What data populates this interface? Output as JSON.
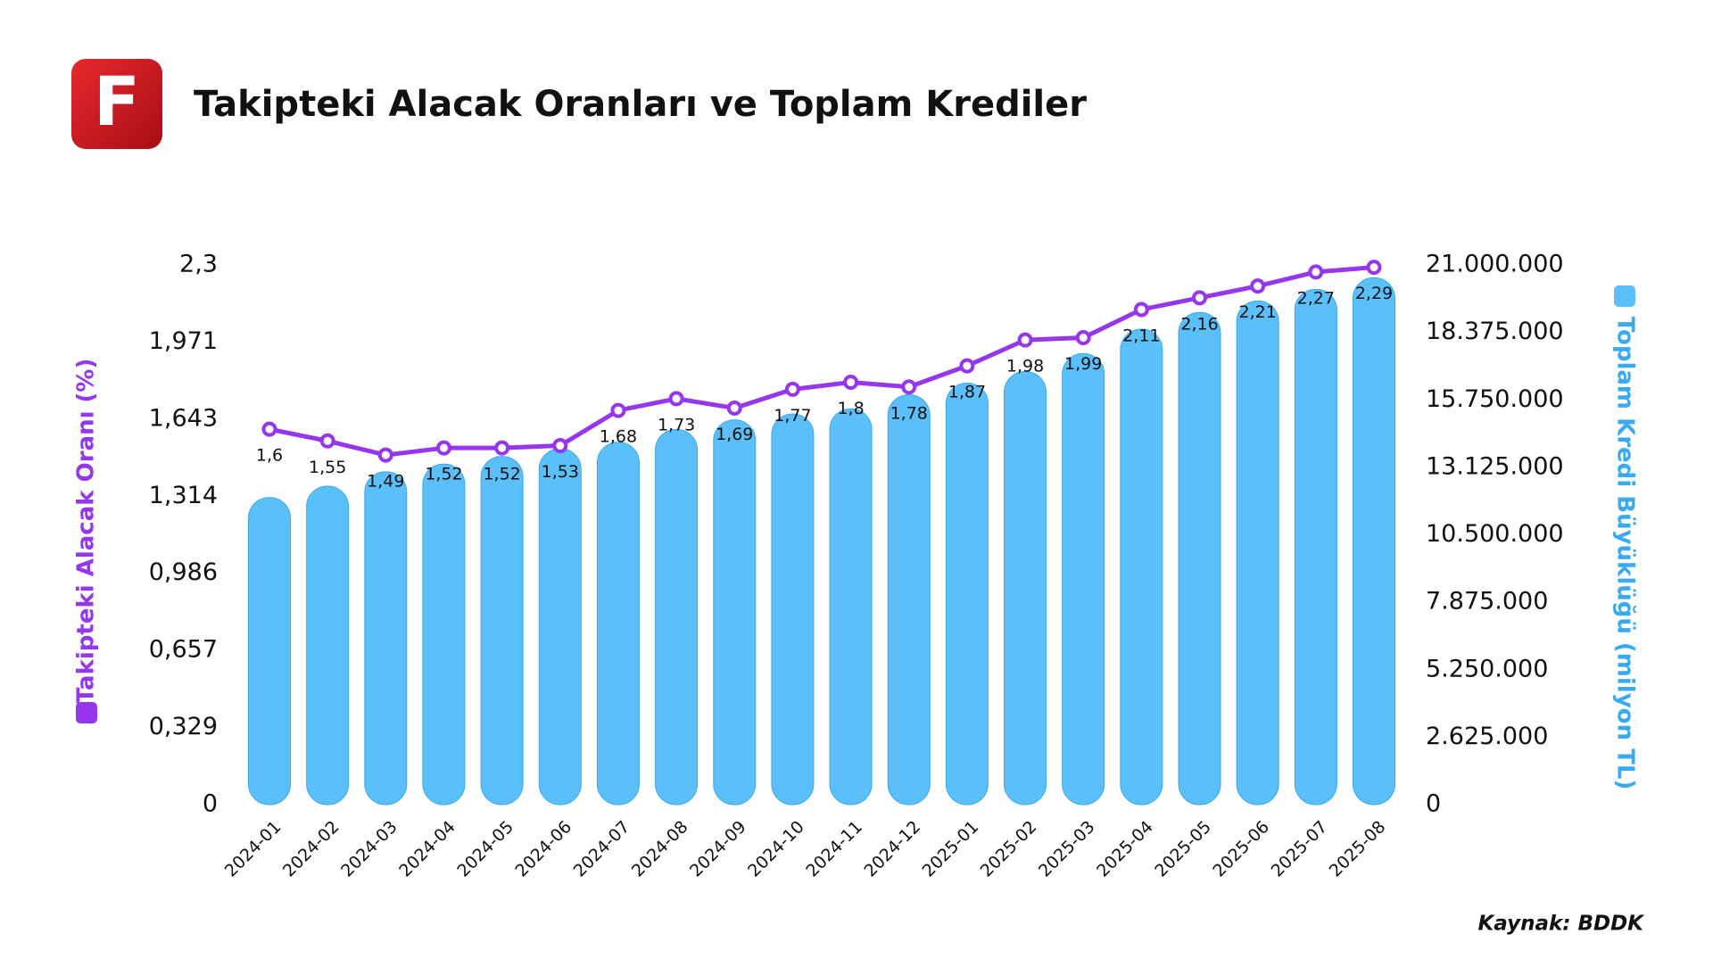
{
  "logo": "F",
  "chart_data": {
    "type": "bar-line",
    "title": "Takipteki Alacak Oranları ve Toplam Krediler",
    "source": "Kaynak: BDDK",
    "categories": [
      "2024-01",
      "2024-02",
      "2024-03",
      "2024-04",
      "2024-05",
      "2024-06",
      "2024-07",
      "2024-08",
      "2024-09",
      "2024-10",
      "2024-11",
      "2024-12",
      "2025-01",
      "2025-02",
      "2025-03",
      "2025-04",
      "2025-05",
      "2025-06",
      "2025-07",
      "2025-08"
    ],
    "series": [
      {
        "name": "Toplam Kredi Büyüklüğü (milyon TL)",
        "type": "bar",
        "axis": "y2",
        "color": "#5bbff9",
        "values": [
          11950000,
          12390000,
          12950000,
          13250000,
          13550000,
          13850000,
          14100000,
          14600000,
          14970000,
          15200000,
          15400000,
          15950000,
          16400000,
          16850000,
          17550000,
          18500000,
          19150000,
          19600000,
          20050000,
          20500000
        ]
      },
      {
        "name": "Takipteki Alacak Oranı (%)",
        "type": "line",
        "axis": "y",
        "color": "#9437ef",
        "values": [
          1.6,
          1.55,
          1.49,
          1.52,
          1.52,
          1.53,
          1.68,
          1.73,
          1.69,
          1.77,
          1.8,
          1.78,
          1.87,
          1.98,
          1.99,
          2.11,
          2.16,
          2.21,
          2.27,
          2.29
        ],
        "value_labels": [
          "1,6",
          "1,55",
          "1,49",
          "1,52",
          "1,52",
          "1,53",
          "1,68",
          "1,73",
          "1,69",
          "1,77",
          "1,8",
          "1,78",
          "1,87",
          "1,98",
          "1,99",
          "2,11",
          "2,16",
          "2,21",
          "2,27",
          "2,29"
        ]
      }
    ],
    "ylim": [
      0,
      2.3
    ],
    "yticks": [
      0,
      {
        "value": 0.329,
        "label": "0,329"
      },
      {
        "value": 0.657,
        "label": "0,657"
      },
      {
        "value": 0.986,
        "label": "0,986"
      },
      {
        "value": 1.314,
        "label": "1,314"
      },
      {
        "value": 1.643,
        "label": "1,643"
      },
      {
        "value": 1.971,
        "label": "1,971"
      },
      {
        "value": 2.3,
        "label": "2,3"
      }
    ],
    "y2lim": [
      0,
      21000000
    ],
    "y2ticks": [
      0,
      {
        "value": 2625000,
        "label": "2.625.000"
      },
      {
        "value": 5250000,
        "label": "5.250.000"
      },
      {
        "value": 7875000,
        "label": "7.875.000"
      },
      {
        "value": 10500000,
        "label": "10.500.000"
      },
      {
        "value": 13125000,
        "label": "13.125.000"
      },
      {
        "value": 15750000,
        "label": "15.750.000"
      },
      {
        "value": 18375000,
        "label": "18.375.000"
      },
      {
        "value": 21000000,
        "label": "21.000.000"
      }
    ]
  }
}
